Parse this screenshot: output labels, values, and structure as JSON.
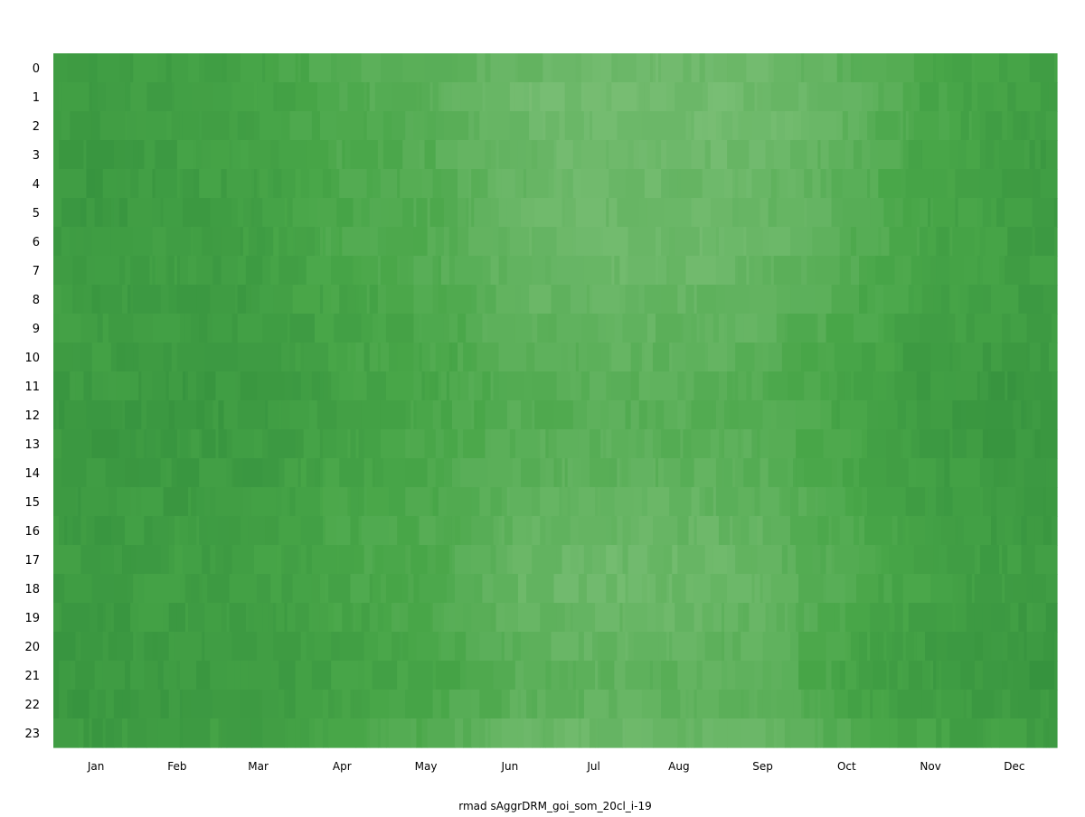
{
  "chart_data": {
    "type": "heatmap",
    "title": "",
    "xlabel": "rmad sAggrDRM_goi_som_20cl_i-19",
    "ylabel": "",
    "y_categories": [
      "0",
      "1",
      "2",
      "3",
      "4",
      "5",
      "6",
      "7",
      "8",
      "9",
      "10",
      "11",
      "12",
      "13",
      "14",
      "15",
      "16",
      "17",
      "18",
      "19",
      "20",
      "21",
      "22",
      "23"
    ],
    "x_tick_labels": [
      "Jan",
      "Feb",
      "Mar",
      "Apr",
      "May",
      "Jun",
      "Jul",
      "Aug",
      "Sep",
      "Oct",
      "Nov",
      "Dec"
    ],
    "x_range_days": [
      1,
      365
    ],
    "grid": false,
    "legend": "none",
    "colormap": {
      "low": "#7fc17a",
      "mid": "#48a648",
      "high": "#2e8a3a"
    },
    "monthly_hourly_intensity": [
      [
        0.72,
        0.74,
        0.72,
        0.76,
        0.78,
        0.78,
        0.76,
        0.74,
        0.72,
        0.7,
        0.7,
        0.72,
        0.74,
        0.76,
        0.76,
        0.74,
        0.74,
        0.72,
        0.72,
        0.74,
        0.76,
        0.78,
        0.78,
        0.74
      ],
      [
        0.66,
        0.66,
        0.64,
        0.68,
        0.7,
        0.7,
        0.68,
        0.68,
        0.7,
        0.72,
        0.74,
        0.76,
        0.76,
        0.74,
        0.74,
        0.72,
        0.7,
        0.68,
        0.68,
        0.7,
        0.72,
        0.74,
        0.74,
        0.7
      ],
      [
        0.62,
        0.6,
        0.6,
        0.62,
        0.64,
        0.64,
        0.66,
        0.68,
        0.7,
        0.72,
        0.72,
        0.74,
        0.74,
        0.72,
        0.72,
        0.7,
        0.68,
        0.66,
        0.66,
        0.68,
        0.7,
        0.72,
        0.72,
        0.66
      ],
      [
        0.44,
        0.44,
        0.46,
        0.48,
        0.5,
        0.5,
        0.5,
        0.52,
        0.56,
        0.58,
        0.6,
        0.62,
        0.62,
        0.6,
        0.58,
        0.56,
        0.54,
        0.54,
        0.56,
        0.58,
        0.6,
        0.62,
        0.6,
        0.52
      ],
      [
        0.4,
        0.38,
        0.4,
        0.42,
        0.44,
        0.44,
        0.44,
        0.46,
        0.5,
        0.52,
        0.54,
        0.56,
        0.56,
        0.54,
        0.52,
        0.5,
        0.48,
        0.48,
        0.5,
        0.52,
        0.54,
        0.56,
        0.54,
        0.46
      ],
      [
        0.22,
        0.16,
        0.2,
        0.24,
        0.26,
        0.26,
        0.24,
        0.26,
        0.3,
        0.34,
        0.38,
        0.4,
        0.42,
        0.4,
        0.38,
        0.34,
        0.3,
        0.26,
        0.26,
        0.3,
        0.34,
        0.38,
        0.36,
        0.26
      ],
      [
        0.14,
        0.1,
        0.12,
        0.16,
        0.18,
        0.18,
        0.16,
        0.18,
        0.22,
        0.28,
        0.32,
        0.36,
        0.38,
        0.36,
        0.32,
        0.28,
        0.22,
        0.18,
        0.18,
        0.22,
        0.26,
        0.3,
        0.3,
        0.2
      ],
      [
        0.16,
        0.12,
        0.14,
        0.16,
        0.18,
        0.18,
        0.18,
        0.2,
        0.24,
        0.28,
        0.32,
        0.36,
        0.38,
        0.36,
        0.32,
        0.28,
        0.24,
        0.2,
        0.2,
        0.24,
        0.28,
        0.32,
        0.3,
        0.22
      ],
      [
        0.18,
        0.16,
        0.16,
        0.2,
        0.22,
        0.22,
        0.22,
        0.24,
        0.28,
        0.32,
        0.36,
        0.4,
        0.42,
        0.4,
        0.36,
        0.32,
        0.28,
        0.26,
        0.26,
        0.3,
        0.34,
        0.36,
        0.34,
        0.26
      ],
      [
        0.34,
        0.32,
        0.32,
        0.36,
        0.38,
        0.38,
        0.4,
        0.42,
        0.48,
        0.52,
        0.56,
        0.58,
        0.58,
        0.56,
        0.54,
        0.52,
        0.5,
        0.48,
        0.48,
        0.52,
        0.56,
        0.58,
        0.56,
        0.44
      ],
      [
        0.52,
        0.54,
        0.54,
        0.56,
        0.58,
        0.58,
        0.58,
        0.6,
        0.64,
        0.66,
        0.7,
        0.72,
        0.72,
        0.7,
        0.68,
        0.66,
        0.64,
        0.62,
        0.62,
        0.64,
        0.68,
        0.7,
        0.68,
        0.6
      ],
      [
        0.62,
        0.64,
        0.64,
        0.66,
        0.68,
        0.68,
        0.66,
        0.66,
        0.68,
        0.7,
        0.74,
        0.78,
        0.8,
        0.78,
        0.76,
        0.74,
        0.72,
        0.7,
        0.7,
        0.72,
        0.76,
        0.78,
        0.74,
        0.66
      ]
    ]
  }
}
